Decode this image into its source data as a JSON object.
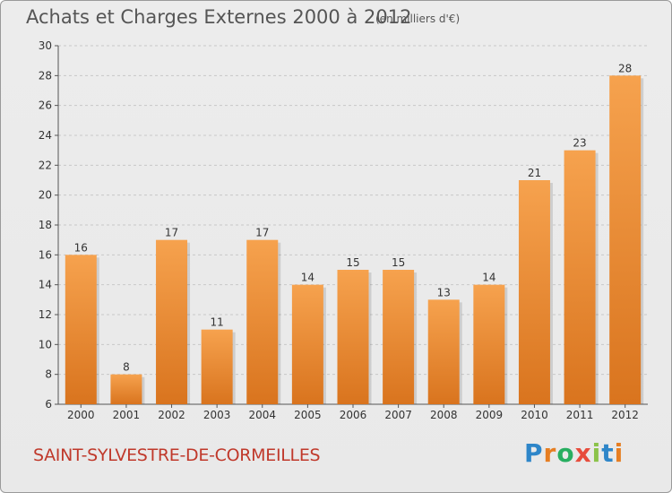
{
  "header": {
    "title": "Achats et Charges Externes 2000 à 2012",
    "unit": "(en milliers d'€)"
  },
  "footer": {
    "commune": "SAINT-SYLVESTRE-DE-CORMEILLES",
    "brand": "Proxiti",
    "brand_letters": [
      {
        "ch": "P",
        "color": "#2e86c9"
      },
      {
        "ch": "r",
        "color": "#e67e22"
      },
      {
        "ch": "o",
        "color": "#27ae60"
      },
      {
        "ch": "x",
        "color": "#e74c3c"
      },
      {
        "ch": "i",
        "color": "#8bc34a"
      },
      {
        "ch": "t",
        "color": "#2e86c9"
      },
      {
        "ch": "i",
        "color": "#e67e22"
      }
    ]
  },
  "colors": {
    "bar_light": "#f6a24e",
    "bar_dark": "#d9741e",
    "grid": "#c8c8c8",
    "axis": "#555555",
    "text": "#333333"
  },
  "chart_data": {
    "type": "bar",
    "title": "Achats et Charges Externes 2000 à 2012",
    "subtitle": "(en milliers d'€)",
    "categories": [
      "2000",
      "2001",
      "2002",
      "2003",
      "2004",
      "2005",
      "2006",
      "2007",
      "2008",
      "2009",
      "2010",
      "2011",
      "2012"
    ],
    "values": [
      16,
      8,
      17,
      11,
      17,
      14,
      15,
      15,
      13,
      14,
      21,
      23,
      28
    ],
    "ylim": [
      6,
      30
    ],
    "yticks": [
      6,
      8,
      10,
      12,
      14,
      16,
      18,
      20,
      22,
      24,
      26,
      28,
      30
    ],
    "grid": true,
    "xlabel": "",
    "ylabel": ""
  }
}
